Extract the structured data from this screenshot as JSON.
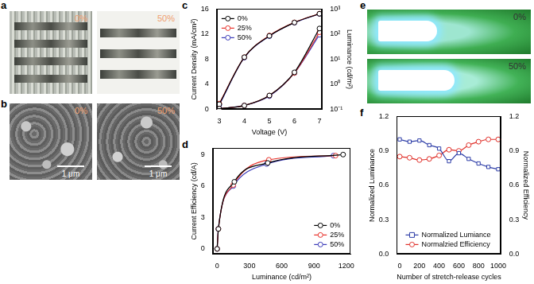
{
  "panels": [
    {
      "panel": "a",
      "images": [
        {
          "caption": "0%"
        },
        {
          "caption": "50%"
        }
      ]
    },
    {
      "panel": "b",
      "images": [
        {
          "caption": "0%",
          "scale_bar": "1 μm"
        },
        {
          "caption": "50%",
          "scale_bar": "1 μm"
        }
      ]
    },
    {
      "panel": "e",
      "images": [
        {
          "caption": "0%"
        },
        {
          "caption": "50%"
        }
      ]
    }
  ],
  "chart_data": [
    {
      "panel": "c",
      "type": "line",
      "x_label": "Voltage (V)",
      "y_label": "Current Density (mA/cm²)",
      "y2_label": "Luminance (cd/m²)",
      "x": [
        3,
        4,
        5,
        6,
        7
      ],
      "xlim": [
        2.9,
        7.1
      ],
      "xticks": [
        3,
        4,
        5,
        6,
        7
      ],
      "ylim": [
        0,
        16
      ],
      "yticks": [
        0,
        4,
        8,
        12,
        16
      ],
      "y2lim": [
        0.1,
        1000
      ],
      "y2ticks": [
        {
          "value": 0.1,
          "label": "10⁻¹"
        },
        {
          "value": 1,
          "label": "10⁰"
        },
        {
          "value": 10,
          "label": "10¹"
        },
        {
          "value": 100,
          "label": "10²"
        },
        {
          "value": 1000,
          "label": "10³"
        }
      ],
      "log": "y2",
      "grid": false,
      "legend": "upper left",
      "series": [
        {
          "name": "0%",
          "color": "#000000",
          "marker": "circle",
          "values": [
            0.1,
            0.6,
            2.2,
            5.9,
            12.9
          ]
        },
        {
          "name": "25%",
          "color": "#e8322b",
          "marker": "circle",
          "values": [
            0.1,
            0.6,
            2.2,
            5.8,
            12.3
          ]
        },
        {
          "name": "50%",
          "color": "#3a3ab8",
          "marker": "circle",
          "values": [
            0.1,
            0.6,
            2.1,
            5.8,
            11.9
          ]
        },
        {
          "name": "0%",
          "color": "#000000",
          "marker": "circle",
          "axis": "y2",
          "values": [
            0.16,
            12,
            85,
            290,
            650
          ]
        },
        {
          "name": "25%",
          "color": "#e8322b",
          "marker": "circle",
          "axis": "y2",
          "values": [
            0.17,
            12,
            88,
            295,
            660
          ]
        },
        {
          "name": "50%",
          "color": "#3a3ab8",
          "marker": "circle",
          "axis": "y2",
          "values": [
            0.15,
            11.5,
            83,
            285,
            640
          ]
        }
      ]
    },
    {
      "panel": "d",
      "type": "line",
      "x_label": "Luminance (cd/m²)",
      "y_label": "Current Efficiency (cd/A)",
      "xlim": [
        -40,
        1240
      ],
      "xticks": [
        0,
        300,
        600,
        900,
        1200
      ],
      "ylim": [
        -0.5,
        9.6
      ],
      "yticks": [
        0,
        3,
        6,
        9
      ],
      "grid": false,
      "legend": "lower right",
      "series": [
        {
          "name": "0%",
          "color": "#000000",
          "marker": "circle",
          "x": [
            0.2,
            12,
            160,
            470,
            1170
          ],
          "values": [
            0,
            1.9,
            6.4,
            8.2,
            9.0
          ]
        },
        {
          "name": "25%",
          "color": "#e8322b",
          "marker": "circle",
          "x": [
            0.2,
            12,
            150,
            480,
            1100
          ],
          "values": [
            0,
            1.9,
            6.1,
            8.5,
            8.9
          ]
        },
        {
          "name": "50%",
          "color": "#3a3ab8",
          "marker": "circle",
          "x": [
            0.2,
            11,
            150,
            460,
            1080
          ],
          "values": [
            0,
            1.9,
            6.0,
            8.1,
            8.9
          ]
        }
      ]
    },
    {
      "panel": "f",
      "type": "line",
      "x_label": "Number of stretch-release cycles",
      "y_label": "Normalized Luminance",
      "y2_label": "Normalized Efficiency",
      "x": [
        0,
        100,
        200,
        300,
        400,
        500,
        600,
        700,
        800,
        900,
        1000
      ],
      "xlim": [
        -30,
        1030
      ],
      "xticks": [
        0,
        200,
        400,
        600,
        800,
        1000
      ],
      "ylim": [
        0,
        1.2
      ],
      "yticks": [
        {
          "value": 0,
          "label": "0.0"
        },
        0.3,
        0.6,
        0.9,
        1.2
      ],
      "y2lim": [
        0,
        1.2
      ],
      "y2ticks": [
        {
          "value": 0,
          "label": "0.0"
        },
        0.3,
        0.6,
        0.9,
        1.2
      ],
      "grid": false,
      "legend": "lower center",
      "series": [
        {
          "name": "Normalized Lumiance",
          "color": "#2f3fa8",
          "marker": "square",
          "values": [
            1.0,
            0.98,
            0.99,
            0.95,
            0.92,
            0.81,
            0.88,
            0.83,
            0.79,
            0.76,
            0.74
          ]
        },
        {
          "name": "Normalzied Efficiency",
          "color": "#e0302a",
          "marker": "circle",
          "axis": "y2",
          "values": [
            0.85,
            0.84,
            0.82,
            0.83,
            0.86,
            0.91,
            0.9,
            0.95,
            0.98,
            1.0,
            1.0
          ]
        }
      ]
    }
  ]
}
